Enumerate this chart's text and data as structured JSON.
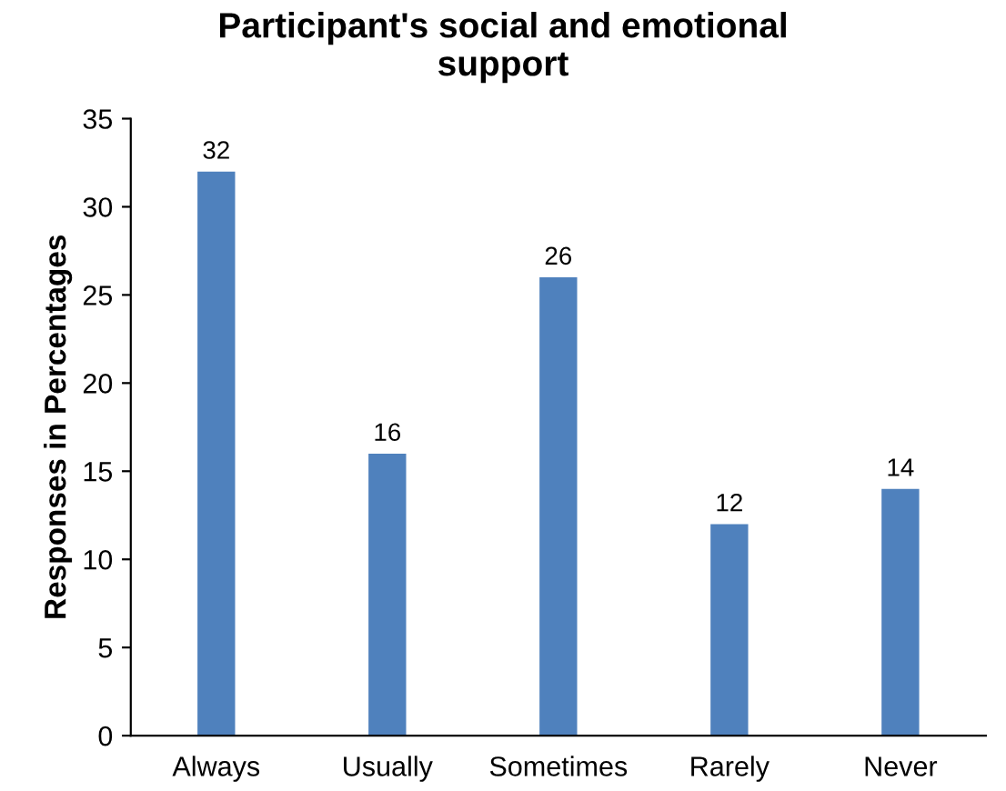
{
  "chart_data": {
    "type": "bar",
    "title": "Participant's social and emotional\nsupport",
    "ylabel": "Responses in Percentages",
    "categories": [
      "Always",
      "Usually",
      "Sometimes",
      "Rarely",
      "Never"
    ],
    "values": [
      32,
      16,
      26,
      12,
      14
    ],
    "color": "#4f81bd",
    "data_labels": true,
    "ylim": [
      0,
      35
    ],
    "yticks": [
      0,
      5,
      10,
      15,
      20,
      25,
      30,
      35
    ],
    "grid": false
  }
}
